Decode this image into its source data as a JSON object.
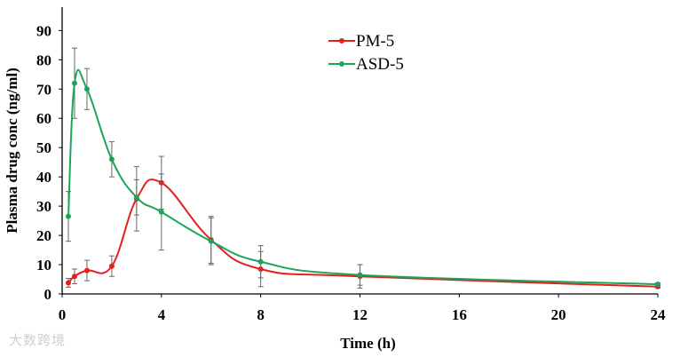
{
  "chart_data": {
    "type": "line",
    "title": "",
    "xlabel": "Time (h)",
    "ylabel": "Plasma drug conc (ng/ml)",
    "xlim": [
      0,
      24
    ],
    "ylim": [
      0,
      98
    ],
    "xticks": [
      0,
      4,
      8,
      12,
      16,
      20,
      24
    ],
    "yticks": [
      0,
      10,
      20,
      30,
      40,
      50,
      60,
      70,
      80,
      90
    ],
    "legend_position": "top-center",
    "series": [
      {
        "name": "PM-5",
        "color": "#e3201b",
        "x": [
          0.25,
          0.5,
          1,
          2,
          3,
          4,
          6,
          8,
          12,
          24
        ],
        "y": [
          3.8,
          6,
          8,
          9.5,
          32.5,
          38,
          18.5,
          8.5,
          6,
          2.5
        ],
        "err": [
          1.5,
          2.5,
          3.5,
          3.5,
          11,
          9,
          8,
          6,
          4,
          0.5
        ]
      },
      {
        "name": "ASD-5",
        "color": "#1aa65a",
        "x": [
          0.25,
          0.5,
          1,
          2,
          3,
          4,
          6,
          8,
          12,
          24
        ],
        "y": [
          26.5,
          72,
          70,
          46,
          33,
          28,
          18,
          11,
          6.5,
          3.3
        ],
        "err": [
          8.5,
          12,
          7,
          6,
          6,
          13,
          8,
          5.5,
          3.5,
          0.5
        ]
      }
    ]
  },
  "watermark": "大数跨境"
}
